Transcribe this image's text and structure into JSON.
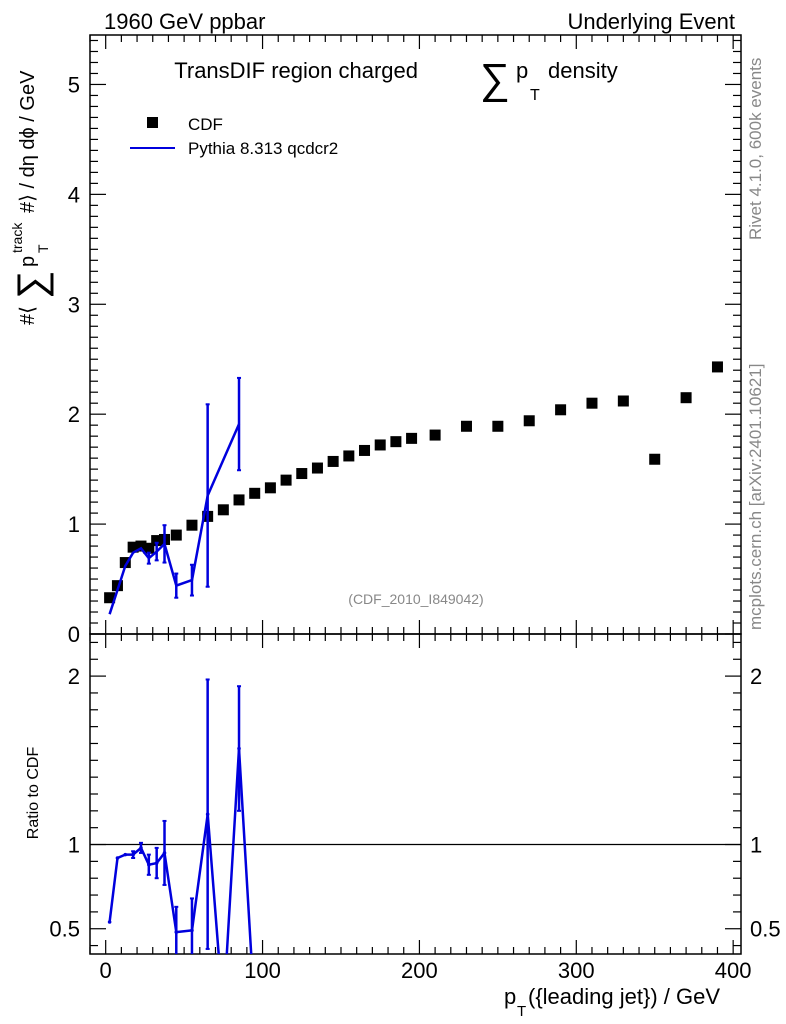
{
  "header": {
    "left": "1960 GeV ppbar",
    "right": "Underlying Event"
  },
  "side": {
    "rivet": "Rivet 4.1.0,  600k events",
    "mcplots": "mcplots.cern.ch [arXiv:2401.10621]"
  },
  "chart_data": [
    {
      "type": "scatter",
      "title": "TransDIF region charged",
      "title_sum": "∑",
      "title_p": "p",
      "title_sub": "T",
      "title_tail": "density",
      "ylabel": {
        "pre": "#⟨",
        "sum": "∑",
        "p": "p",
        "sub": "T",
        "sup": "track",
        "post": "#⟩ / dη dϕ / GeV"
      },
      "analysis_id": "(CDF_2010_I849042)",
      "xlim": [
        -10,
        405
      ],
      "ylim": [
        0,
        5.45
      ],
      "yticks": [
        "0",
        "1",
        "2",
        "3",
        "4",
        "5"
      ],
      "legend": {
        "position": "top-left",
        "data_label": "CDF",
        "mc_label": "Pythia 8.313 qcdcr2"
      },
      "series": [
        {
          "name": "CDF",
          "style": "markers",
          "color": "#000000",
          "x": [
            2.5,
            7.5,
            12.5,
            17.5,
            22.5,
            27.5,
            32.5,
            37.5,
            45,
            55,
            65,
            75,
            85,
            95,
            105,
            115,
            125,
            135,
            145,
            155,
            165,
            175,
            185,
            195,
            210,
            230,
            250,
            270,
            290,
            310,
            330,
            350,
            370,
            390
          ],
          "y": [
            0.33,
            0.44,
            0.65,
            0.79,
            0.8,
            0.78,
            0.85,
            0.86,
            0.9,
            0.99,
            1.07,
            1.13,
            1.22,
            1.28,
            1.33,
            1.4,
            1.46,
            1.51,
            1.57,
            1.62,
            1.67,
            1.72,
            1.75,
            1.78,
            1.81,
            1.89,
            1.89,
            1.94,
            2.04,
            2.1,
            2.12,
            1.59,
            2.15,
            2.43
          ]
        },
        {
          "name": "Pythia 8.313 qcdcr2",
          "style": "line",
          "color": "#0000dd",
          "x": [
            2.5,
            7.5,
            12.5,
            17.5,
            22.5,
            27.5,
            32.5,
            37.5,
            45,
            55,
            65,
            85
          ],
          "y": [
            0.18,
            0.4,
            0.62,
            0.74,
            0.78,
            0.69,
            0.75,
            0.82,
            0.44,
            0.49,
            1.26,
            1.91
          ],
          "err": [
            0.01,
            0.01,
            0.01,
            0.02,
            0.02,
            0.05,
            0.08,
            0.17,
            0.11,
            0.14,
            0.83,
            0.42
          ]
        }
      ]
    },
    {
      "type": "line",
      "ylabel": "Ratio to CDF",
      "xlabel": {
        "p": "p",
        "sub": "T",
        "post": "({leading jet}) / GeV"
      },
      "xlim": [
        -10,
        405
      ],
      "ylim": [
        0.35,
        2.25
      ],
      "xticks": [
        "0",
        "100",
        "200",
        "300",
        "400"
      ],
      "yticks": [
        "0.5",
        "1",
        "2"
      ],
      "reference": 1.0,
      "series": [
        {
          "name": "Pythia 8.313 qcdcr2 / CDF",
          "color": "#0000dd",
          "x": [
            2.5,
            7.5,
            12.5,
            17.5,
            22.5,
            27.5,
            32.5,
            37.5,
            45,
            55,
            65,
            75,
            85,
            95
          ],
          "y": [
            0.54,
            0.92,
            0.94,
            0.94,
            0.98,
            0.88,
            0.89,
            0.95,
            0.48,
            0.49,
            1.18,
            0.0,
            1.57,
            0.0
          ],
          "err": [
            0.01,
            0.01,
            0.01,
            0.02,
            0.03,
            0.06,
            0.09,
            0.19,
            0.15,
            0.19,
            0.8,
            0.0,
            0.37,
            0.0
          ]
        }
      ]
    }
  ]
}
